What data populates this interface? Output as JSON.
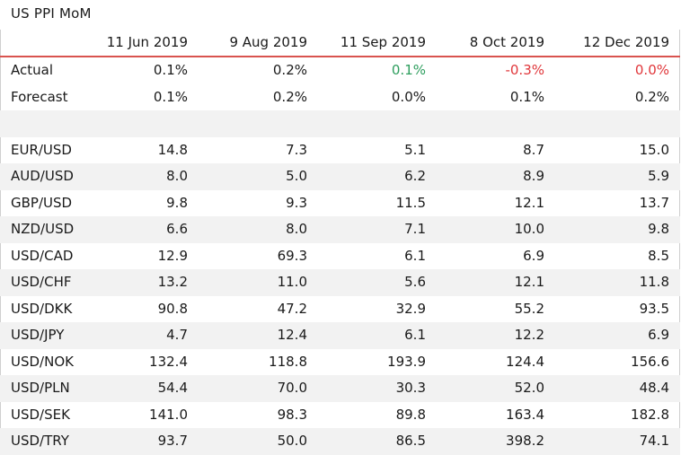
{
  "title": "US PPI MoM",
  "columns": [
    "",
    "11 Jun 2019",
    "9 Aug 2019",
    "11 Sep 2019",
    "8 Oct 2019",
    "12 Dec 2019"
  ],
  "rows": [
    {
      "label": "Actual",
      "values": [
        "0.1%",
        "0.2%",
        "0.1%",
        "-0.3%",
        "0.0%"
      ],
      "shade": false,
      "colors": [
        "",
        "",
        "green",
        "red",
        "red"
      ]
    },
    {
      "label": "Forecast",
      "values": [
        "0.1%",
        "0.2%",
        "0.0%",
        "0.1%",
        "0.2%"
      ],
      "shade": false,
      "colors": [
        "",
        "",
        "",
        "",
        ""
      ]
    },
    {
      "label": "",
      "values": [
        "",
        "",
        "",
        "",
        ""
      ],
      "shade": true,
      "colors": [
        "",
        "",
        "",
        "",
        ""
      ]
    },
    {
      "label": "EUR/USD",
      "values": [
        "14.8",
        "7.3",
        "5.1",
        "8.7",
        "15.0"
      ],
      "shade": false,
      "colors": [
        "",
        "",
        "",
        "",
        ""
      ]
    },
    {
      "label": "AUD/USD",
      "values": [
        "8.0",
        "5.0",
        "6.2",
        "8.9",
        "5.9"
      ],
      "shade": true,
      "colors": [
        "",
        "",
        "",
        "",
        ""
      ]
    },
    {
      "label": "GBP/USD",
      "values": [
        "9.8",
        "9.3",
        "11.5",
        "12.1",
        "13.7"
      ],
      "shade": false,
      "colors": [
        "",
        "",
        "",
        "",
        ""
      ]
    },
    {
      "label": "NZD/USD",
      "values": [
        "6.6",
        "8.0",
        "7.1",
        "10.0",
        "9.8"
      ],
      "shade": true,
      "colors": [
        "",
        "",
        "",
        "",
        ""
      ]
    },
    {
      "label": "USD/CAD",
      "values": [
        "12.9",
        "69.3",
        "6.1",
        "6.9",
        "8.5"
      ],
      "shade": false,
      "colors": [
        "",
        "",
        "",
        "",
        ""
      ]
    },
    {
      "label": "USD/CHF",
      "values": [
        "13.2",
        "11.0",
        "5.6",
        "12.1",
        "11.8"
      ],
      "shade": true,
      "colors": [
        "",
        "",
        "",
        "",
        ""
      ]
    },
    {
      "label": "USD/DKK",
      "values": [
        "90.8",
        "47.2",
        "32.9",
        "55.2",
        "93.5"
      ],
      "shade": false,
      "colors": [
        "",
        "",
        "",
        "",
        ""
      ]
    },
    {
      "label": "USD/JPY",
      "values": [
        "4.7",
        "12.4",
        "6.1",
        "12.2",
        "6.9"
      ],
      "shade": true,
      "colors": [
        "",
        "",
        "",
        "",
        ""
      ]
    },
    {
      "label": "USD/NOK",
      "values": [
        "132.4",
        "118.8",
        "193.9",
        "124.4",
        "156.6"
      ],
      "shade": false,
      "colors": [
        "",
        "",
        "",
        "",
        ""
      ]
    },
    {
      "label": "USD/PLN",
      "values": [
        "54.4",
        "70.0",
        "30.3",
        "52.0",
        "48.4"
      ],
      "shade": true,
      "colors": [
        "",
        "",
        "",
        "",
        ""
      ]
    },
    {
      "label": "USD/SEK",
      "values": [
        "141.0",
        "98.3",
        "89.8",
        "163.4",
        "182.8"
      ],
      "shade": false,
      "colors": [
        "",
        "",
        "",
        "",
        ""
      ]
    },
    {
      "label": "USD/TRY",
      "values": [
        "93.7",
        "50.0",
        "86.5",
        "398.2",
        "74.1"
      ],
      "shade": true,
      "colors": [
        "",
        "",
        "",
        "",
        ""
      ]
    }
  ],
  "colors": {
    "positive": "#2e9e5e",
    "negative": "#e0363a",
    "header_rule": "#d9534f",
    "row_shade": "#f2f2f2"
  }
}
